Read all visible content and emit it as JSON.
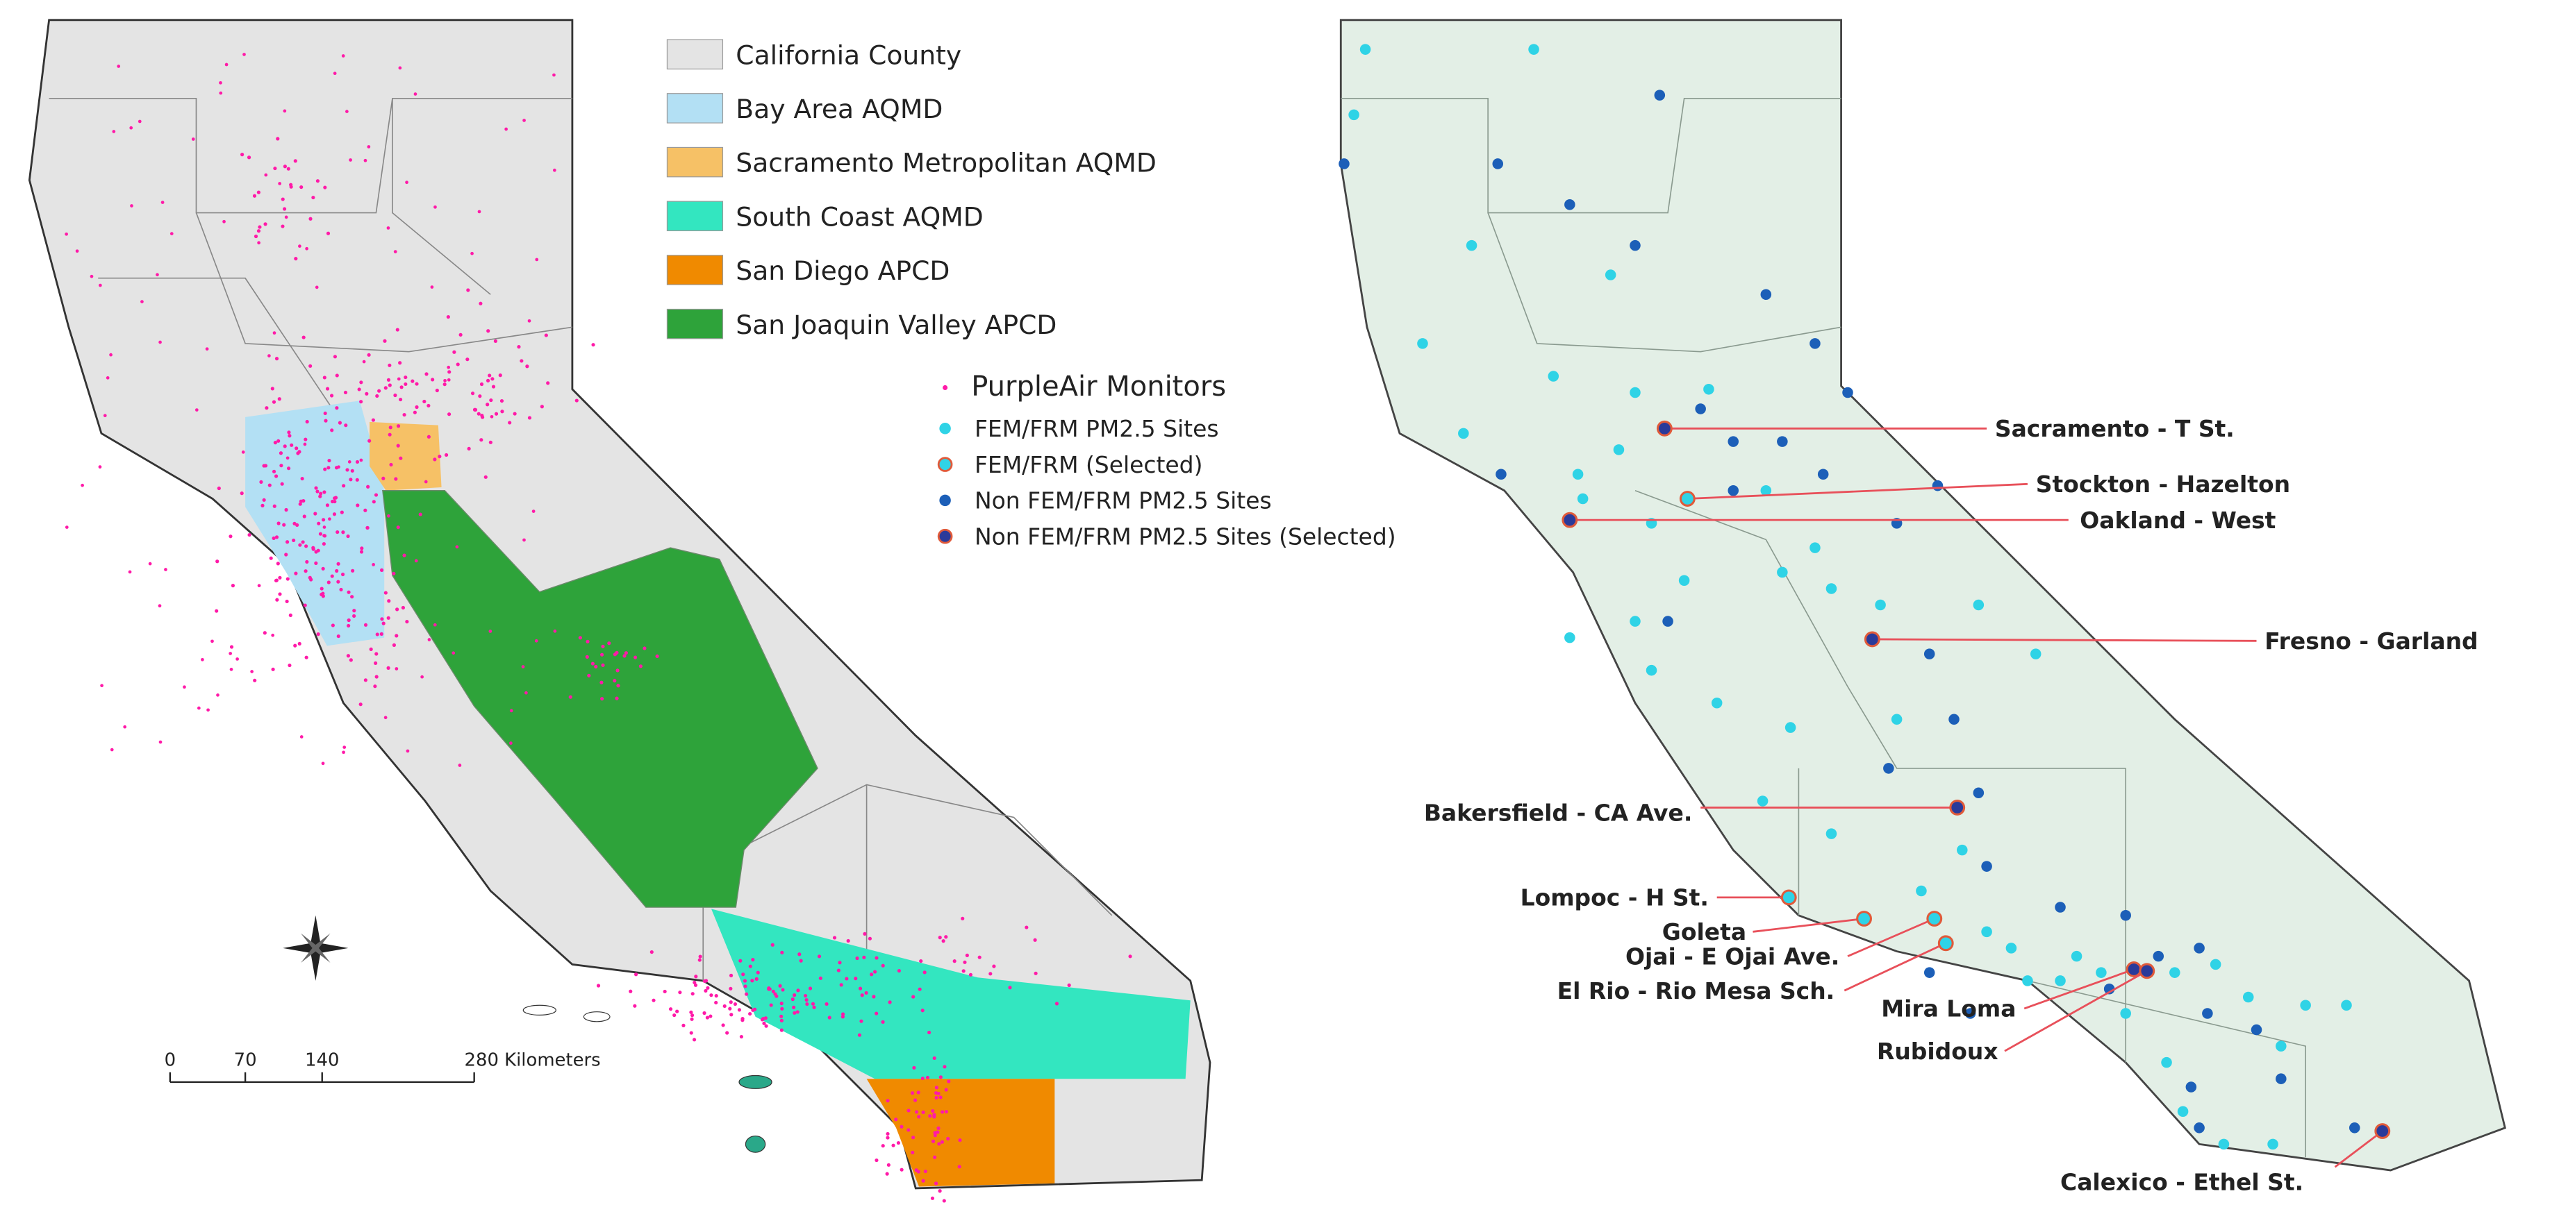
{
  "left_map": {
    "legend": [
      "California County",
      "Bay Area AQMD",
      "Sacramento Metropolitan AQMD",
      "South Coast AQMD",
      "San Diego APCD",
      "San Joaquin Valley APCD"
    ],
    "monitor_legend": [
      "PurpleAir Monitors",
      "FEM/FRM PM2.5 Sites",
      "FEM/FRM (Selected)",
      "Non FEM/FRM PM2.5 Sites",
      "Non FEM/FRM PM2.5 Sites (Selected)"
    ],
    "scale": [
      "0",
      "70",
      "140",
      "280 Kilometers"
    ]
  },
  "right_map": {
    "sites": [
      "Sacramento - T St.",
      "Stockton - Hazelton",
      "Oakland - West",
      "Fresno - Garland",
      "Bakersfield - CA Ave.",
      "Lompoc - H St.",
      "Goleta",
      "Ojai - E Ojai Ave.",
      "El Rio - Rio Mesa Sch.",
      "Mira Loma",
      "Rubidoux",
      "Calexico - Ethel St."
    ]
  }
}
